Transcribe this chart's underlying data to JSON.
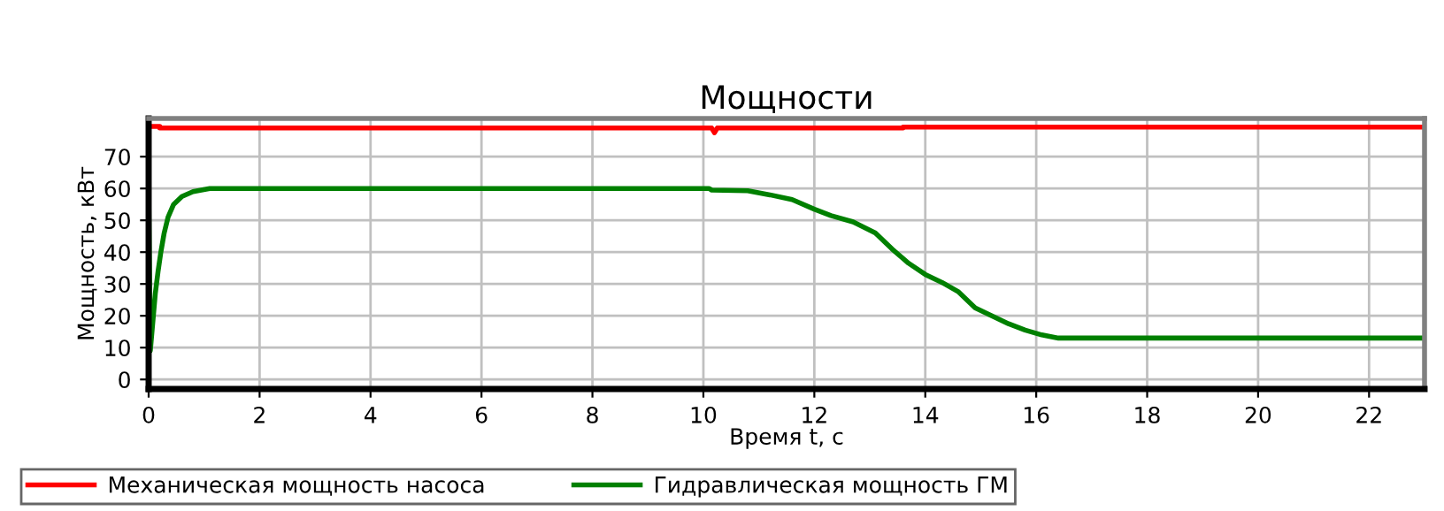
{
  "chart_data": {
    "type": "line",
    "title": "Мощности",
    "xlabel": "Время t, с",
    "ylabel": "Мощность, кВт",
    "xlim": [
      0,
      23
    ],
    "ylim": [
      -3,
      82
    ],
    "xticks": [
      0,
      2,
      4,
      6,
      8,
      10,
      12,
      14,
      16,
      18,
      20,
      22
    ],
    "yticks": [
      0,
      10,
      20,
      30,
      40,
      50,
      60,
      70
    ],
    "grid": true,
    "legend": "bottom",
    "line_style": "solid",
    "marker": "none",
    "series": [
      {
        "name": "Механическая мощность насоса",
        "color": "#ff0000",
        "x": [
          0,
          0,
          0.2,
          0.2,
          10.15,
          10.2,
          10.25,
          13.6,
          13.6,
          23
        ],
        "values": [
          60,
          79.5,
          79.5,
          79,
          79,
          77.5,
          79,
          79,
          79.3,
          79.3
        ]
      },
      {
        "name": "Гидравлическая мощность ГМ",
        "color": "#008000",
        "x": [
          0,
          0,
          0.03,
          0.08,
          0.12,
          0.17,
          0.22,
          0.28,
          0.35,
          0.45,
          0.6,
          0.8,
          1.1,
          10.1,
          10.15,
          10.8,
          11.2,
          11.6,
          12,
          12.3,
          12.7,
          13.1,
          13.4,
          13.7,
          14,
          14.3,
          14.6,
          14.9,
          15.2,
          15.5,
          15.8,
          16.1,
          16.4,
          23
        ],
        "values": [
          -1,
          60,
          9,
          19,
          27,
          34,
          40,
          46,
          51,
          55,
          57.5,
          59,
          60,
          60,
          59.5,
          59.3,
          58,
          56.5,
          53.5,
          51.5,
          49.5,
          46,
          41,
          36.5,
          33,
          30.5,
          27.5,
          22.5,
          20,
          17.5,
          15.5,
          14,
          13,
          13
        ]
      }
    ]
  }
}
